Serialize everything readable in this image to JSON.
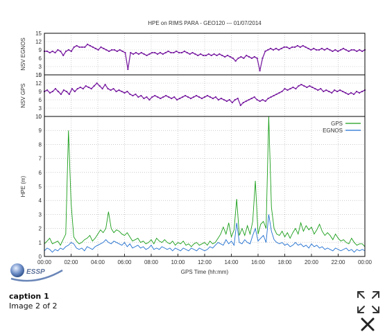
{
  "caption": {
    "title": "caption 1",
    "counter": "Image 2 of 2"
  },
  "logo": {
    "text": "ESSP"
  },
  "icons": {
    "expand": "expand-icon",
    "close": "close-icon"
  },
  "colors": {
    "gps": "#1a9e1a",
    "egnos": "#1f6fd0",
    "nsv": "#7a1fa2"
  },
  "chart_data": [
    {
      "type": "line",
      "title": "HPE on RIMS PARA - GEO120   ---   01/07/2014",
      "ylabel": "NSV EGNOS",
      "ylim": [
        0,
        15
      ],
      "yticks": [
        0,
        3,
        6,
        9,
        12,
        15
      ],
      "xlim": [
        0,
        24
      ],
      "grid": true,
      "series": [
        {
          "name": "",
          "values": [
            8.5,
            8.5,
            8,
            8.5,
            8,
            9,
            8.5,
            7,
            8.5,
            9,
            8.5,
            10,
            10.5,
            10,
            10,
            10,
            11,
            10.5,
            10,
            9.5,
            9,
            10,
            9.5,
            9,
            8.5,
            9,
            9,
            8.5,
            9,
            8.5,
            8,
            2,
            8,
            7.5,
            8,
            7.5,
            8,
            7.5,
            7,
            7.5,
            8,
            8,
            7.5,
            8,
            7.5,
            8,
            8.5,
            8,
            8,
            8.5,
            8,
            8,
            8.5,
            8,
            7.5,
            8,
            7.5,
            7,
            7.5,
            7,
            7,
            7.5,
            7,
            7.5,
            7,
            7.5,
            7,
            6.5,
            7,
            6.5,
            6,
            5,
            6,
            6.5,
            6,
            7,
            6.5,
            6,
            6.5,
            6,
            1.5,
            6,
            8.5,
            9,
            9.5,
            9,
            9.5,
            9,
            9.5,
            10,
            10,
            9.5,
            10,
            10,
            10.5,
            10,
            10.5,
            10,
            9.5,
            9,
            9.5,
            9,
            9,
            9.5,
            9,
            9.5,
            9,
            8.5,
            9,
            8.5,
            9,
            9.5,
            9,
            8.5,
            9,
            9,
            8.5,
            9,
            8.5,
            9
          ]
        }
      ]
    },
    {
      "type": "line",
      "ylabel": "NSV GPS",
      "ylim": [
        0,
        15
      ],
      "yticks": [
        0,
        3,
        6,
        9,
        12,
        15
      ],
      "xlim": [
        0,
        24
      ],
      "grid": true,
      "series": [
        {
          "name": "",
          "values": [
            9,
            9.5,
            8.5,
            9,
            10,
            9,
            8,
            9.5,
            9,
            8,
            10,
            9,
            10,
            10.5,
            10,
            11,
            10.5,
            10,
            11,
            12,
            11,
            10,
            11.5,
            10,
            9.5,
            10,
            9,
            9.5,
            9,
            8.5,
            9,
            8,
            7.5,
            8,
            7,
            7.5,
            6.5,
            7,
            6,
            7,
            7.5,
            7,
            6.5,
            7,
            7.5,
            7,
            6.5,
            7,
            6,
            6.5,
            7,
            7.5,
            7,
            6.5,
            7,
            7.5,
            7,
            6.5,
            7,
            7.5,
            7,
            6.5,
            7,
            6,
            6.5,
            6,
            5.5,
            6,
            5,
            6,
            6.5,
            4,
            5,
            5.5,
            6,
            6.5,
            7,
            6,
            5.5,
            6,
            5.5,
            6.5,
            7,
            7.5,
            8,
            8.5,
            9,
            10,
            9.5,
            10,
            10.5,
            10,
            11,
            11.5,
            11,
            10.5,
            11,
            10.5,
            10,
            9.5,
            10,
            9,
            9.5,
            9,
            8.5,
            9.5,
            9,
            9.5,
            9,
            8.5,
            8,
            8.5,
            8,
            9,
            8.5,
            9,
            9.5
          ]
        }
      ]
    },
    {
      "type": "line",
      "xlabel": "GPS Time (hh:mm)",
      "ylabel": "HPE (m)",
      "ylim": [
        0,
        10
      ],
      "yticks": [
        0,
        1,
        2,
        3,
        4,
        5,
        6,
        7,
        8,
        9,
        10
      ],
      "xlim": [
        0,
        24
      ],
      "xticks": [
        "00:00",
        "02:00",
        "04:00",
        "06:00",
        "08:00",
        "10:00",
        "12:00",
        "14:00",
        "16:00",
        "18:00",
        "20:00",
        "22:00",
        "00:00"
      ],
      "grid": true,
      "legend": "top-right",
      "series": [
        {
          "name": "GPS",
          "values": [
            0.9,
            1.1,
            1.3,
            0.9,
            1.0,
            1.1,
            0.8,
            1.2,
            1.6,
            9.0,
            3.8,
            1.4,
            1.1,
            0.9,
            1.0,
            1.2,
            1.3,
            1.5,
            1.1,
            1.3,
            1.6,
            1.9,
            1.7,
            2.0,
            3.2,
            2.0,
            1.7,
            1.9,
            1.8,
            1.6,
            1.5,
            1.7,
            1.4,
            1.1,
            1.2,
            1.3,
            1.0,
            1.1,
            0.9,
            1.0,
            1.2,
            0.9,
            1.3,
            1.1,
            1.0,
            1.2,
            1.0,
            0.9,
            1.1,
            0.8,
            1.0,
            0.9,
            1.1,
            0.8,
            0.9,
            0.7,
            0.9,
            1.0,
            0.8,
            0.9,
            1.0,
            0.8,
            1.1,
            0.9,
            1.0,
            1.3,
            1.6,
            2.1,
            1.6,
            2.4,
            1.4,
            1.9,
            4.1,
            1.5,
            2.0,
            1.5,
            2.2,
            1.6,
            2.5,
            5.4,
            1.6,
            2.3,
            2.5,
            2.0,
            10,
            3.5,
            2.0,
            1.6,
            1.5,
            1.8,
            1.4,
            1.7,
            1.3,
            1.7,
            2.0,
            1.6,
            2.4,
            1.8,
            2.2,
            1.9,
            2.1,
            1.6,
            1.9,
            2.3,
            1.8,
            1.5,
            1.7,
            1.5,
            1.2,
            1.6,
            1.3,
            1.1,
            1.2,
            1.0,
            0.9,
            1.3,
            1.0,
            0.8,
            0.9,
            0.9,
            0.7
          ]
        },
        {
          "name": "EGNOS",
          "values": [
            0.4,
            0.6,
            0.5,
            0.3,
            0.5,
            0.4,
            0.6,
            0.5,
            0.7,
            0.8,
            1.0,
            0.9,
            0.6,
            0.5,
            0.6,
            0.4,
            0.7,
            0.6,
            0.5,
            0.7,
            0.8,
            0.9,
            1.0,
            1.2,
            1.0,
            0.9,
            1.1,
            1.0,
            0.9,
            0.8,
            1.0,
            0.7,
            0.9,
            0.6,
            0.7,
            0.8,
            0.6,
            0.7,
            0.5,
            0.6,
            0.8,
            0.5,
            0.6,
            0.5,
            0.7,
            0.6,
            0.5,
            0.6,
            0.4,
            0.6,
            0.5,
            0.4,
            0.6,
            0.5,
            0.4,
            0.6,
            0.5,
            0.4,
            0.6,
            0.5,
            0.4,
            0.5,
            0.7,
            0.6,
            0.8,
            1.0,
            0.9,
            0.8,
            1.2,
            0.9,
            1.1,
            0.8,
            2.4,
            1.0,
            0.9,
            1.2,
            1.0,
            0.9,
            1.5,
            2.0,
            1.1,
            1.3,
            1.5,
            1.0,
            3.0,
            1.8,
            1.2,
            1.0,
            0.9,
            1.0,
            0.8,
            0.9,
            0.7,
            0.8,
            1.0,
            0.8,
            0.9,
            0.7,
            0.8,
            0.6,
            0.9,
            0.7,
            0.8,
            0.6,
            0.7,
            0.5,
            0.6,
            0.5,
            0.4,
            0.6,
            0.5,
            0.4,
            0.5,
            0.6,
            0.4,
            0.5,
            0.3,
            0.5,
            0.4,
            0.5,
            0.4
          ]
        }
      ]
    }
  ]
}
